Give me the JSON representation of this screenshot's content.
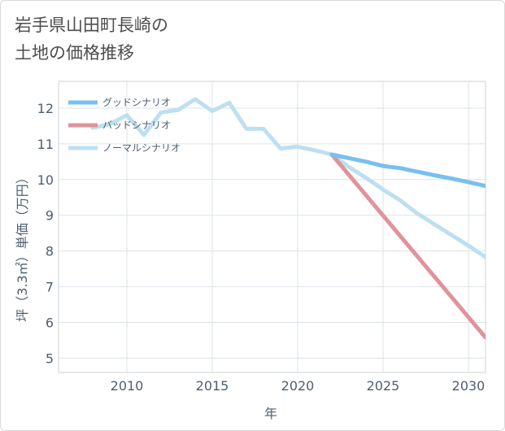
{
  "title": "岩手県山田町長崎の\n土地の価格推移",
  "chart_data": {
    "type": "line",
    "xlabel": "年",
    "ylabel": "坪（3.3㎡）単価（万円）",
    "xlim": [
      2006,
      2031
    ],
    "ylim": [
      4.6,
      12.75
    ],
    "x_ticks": [
      2010,
      2015,
      2020,
      2025,
      2030
    ],
    "y_ticks": [
      5,
      6,
      7,
      8,
      9,
      10,
      11,
      12
    ],
    "grid": true,
    "legend_position": "top-left",
    "series": [
      {
        "name": "グッドシナリオ",
        "color": "#78c0f0",
        "x": [
          2022,
          2023,
          2024,
          2025,
          2026,
          2027,
          2028,
          2029,
          2030,
          2031
        ],
        "values": [
          10.7,
          10.6,
          10.5,
          10.38,
          10.32,
          10.22,
          10.12,
          10.03,
          9.93,
          9.82
        ]
      },
      {
        "name": "バッドシナリオ",
        "color": "#e0939a",
        "x": [
          2022,
          2031
        ],
        "values": [
          10.7,
          5.58
        ]
      },
      {
        "name": "ノーマルシナリオ",
        "color": "#bde0f0",
        "x": [
          2008,
          2009,
          2010,
          2011,
          2012,
          2013,
          2014,
          2015,
          2016,
          2017,
          2018,
          2019,
          2020,
          2021,
          2022,
          2023,
          2024,
          2025,
          2026,
          2027,
          2028,
          2029,
          2030,
          2031
        ],
        "values": [
          11.45,
          11.55,
          11.8,
          11.25,
          11.88,
          11.95,
          12.25,
          11.92,
          12.15,
          11.42,
          11.42,
          10.87,
          10.92,
          10.82,
          10.7,
          10.35,
          10.05,
          9.72,
          9.42,
          9.05,
          8.75,
          8.45,
          8.15,
          7.83
        ]
      }
    ]
  }
}
